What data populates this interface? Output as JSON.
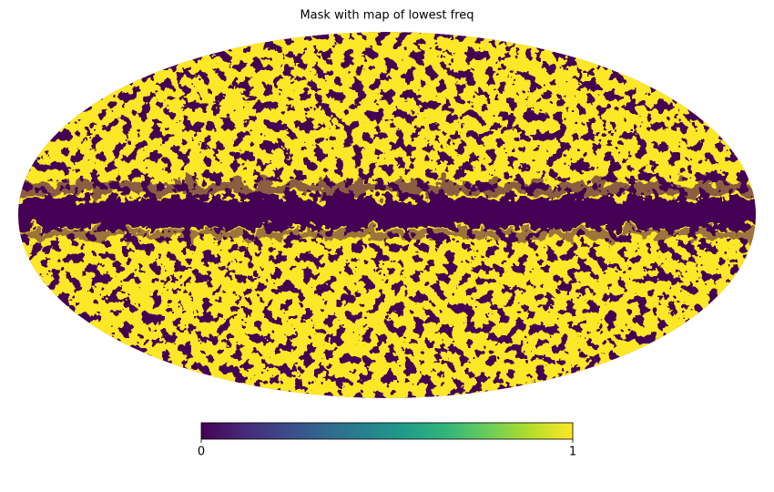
{
  "chart_data": {
    "type": "mollview",
    "title": "Mask with map of lowest freq",
    "colorbar": {
      "lim": [
        0,
        1
      ],
      "ticks": [
        0,
        1
      ],
      "colors": [
        "#440154",
        "#482878",
        "#3e4989",
        "#31688e",
        "#26828e",
        "#1f9e89",
        "#35b779",
        "#6ece58",
        "#b5de2b",
        "#fde725"
      ]
    }
  }
}
